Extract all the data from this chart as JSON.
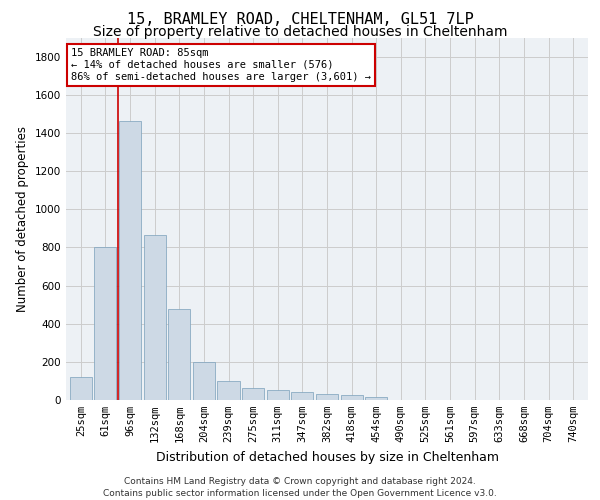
{
  "title_line1": "15, BRAMLEY ROAD, CHELTENHAM, GL51 7LP",
  "title_line2": "Size of property relative to detached houses in Cheltenham",
  "xlabel": "Distribution of detached houses by size in Cheltenham",
  "ylabel": "Number of detached properties",
  "footnote": "Contains HM Land Registry data © Crown copyright and database right 2024.\nContains public sector information licensed under the Open Government Licence v3.0.",
  "categories": [
    "25sqm",
    "61sqm",
    "96sqm",
    "132sqm",
    "168sqm",
    "204sqm",
    "239sqm",
    "275sqm",
    "311sqm",
    "347sqm",
    "382sqm",
    "418sqm",
    "454sqm",
    "490sqm",
    "525sqm",
    "561sqm",
    "597sqm",
    "633sqm",
    "668sqm",
    "704sqm",
    "740sqm"
  ],
  "values": [
    120,
    800,
    1460,
    865,
    475,
    200,
    100,
    65,
    50,
    40,
    30,
    25,
    15,
    0,
    0,
    0,
    0,
    0,
    0,
    0,
    0
  ],
  "bar_color": "#cdd9e5",
  "bar_edge_color": "#7aa0bb",
  "vline_bin": 1.5,
  "annotation_text": "15 BRAMLEY ROAD: 85sqm\n← 14% of detached houses are smaller (576)\n86% of semi-detached houses are larger (3,601) →",
  "annotation_box_color": "#ffffff",
  "annotation_box_edge": "#cc0000",
  "vline_color": "#cc0000",
  "ylim": [
    0,
    1900
  ],
  "yticks": [
    0,
    200,
    400,
    600,
    800,
    1000,
    1200,
    1400,
    1600,
    1800
  ],
  "grid_color": "#cccccc",
  "bg_color": "#edf1f5",
  "title1_fontsize": 11,
  "title2_fontsize": 10,
  "xlabel_fontsize": 9,
  "ylabel_fontsize": 8.5,
  "tick_fontsize": 7.5,
  "footnote_fontsize": 6.5
}
